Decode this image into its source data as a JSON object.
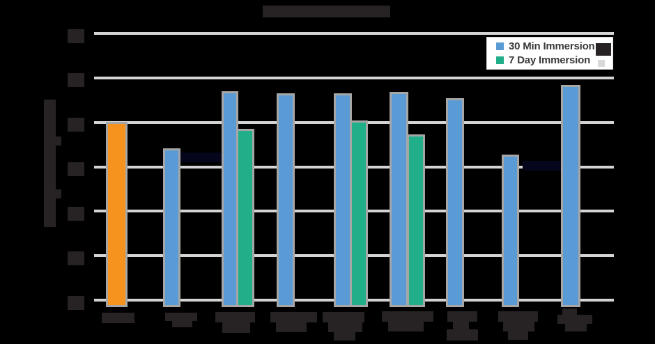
{
  "note": "Chart title, y-axis title, y-axis tick labels and x-axis category labels are rendered as illegible dark boxes (black text over black background) in the screenshot; only the legend text is legible.",
  "chart_data": {
    "type": "bar",
    "title": "",
    "xlabel": "",
    "ylabel": "",
    "categories": [
      "",
      "",
      "",
      "",
      "",
      "",
      "",
      "",
      ""
    ],
    "series": [
      {
        "name": "30 Min Immersion",
        "values": [
          3.97,
          3.37,
          4.66,
          4.6,
          4.61,
          4.64,
          4.5,
          3.23,
          4.8
        ],
        "point_colors": [
          "#F6921E",
          "#5B9BD5",
          "#5B9BD5",
          "#5B9BD5",
          "#5B9BD5",
          "#5B9BD5",
          "#5B9BD5",
          "#5B9BD5",
          "#5B9BD5"
        ]
      },
      {
        "name": "7 Day Immersion",
        "values": [
          null,
          null,
          3.8,
          null,
          3.99,
          3.68,
          null,
          null,
          null
        ],
        "color": "#21AF8A"
      }
    ],
    "ylim": [
      0,
      6
    ],
    "y_gridline_count": 7,
    "grid_on": true,
    "gridline_color": "#D4D4D4",
    "bar_outline_color": "#A6A6A6",
    "plot_background": "#000000",
    "legend": {
      "position": "top-right",
      "background": "#FFFFFF",
      "text_color": "#3A3A3A",
      "entries": [
        {
          "label": "30 Min Immersion",
          "marker_color": "#5B9BD5"
        },
        {
          "label": "7 Day Immersion",
          "marker_color": "#21AF8A"
        }
      ]
    },
    "redaction_color": "#272325",
    "highlight_first_bar_color": "#F6921E"
  }
}
